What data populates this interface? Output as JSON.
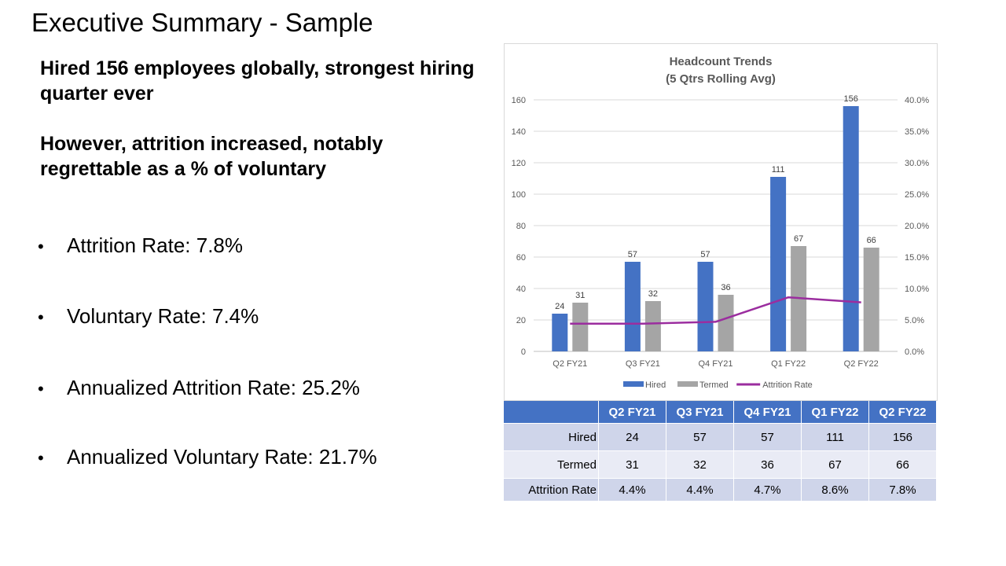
{
  "page": {
    "title": "Executive Summary - Sample",
    "headline1": "Hired 156 employees globally, strongest hiring quarter ever",
    "headline2": "However, attrition increased, notably regrettable as a % of voluntary"
  },
  "bullets": [
    "Attrition Rate: 7.8%",
    "Voluntary Rate: 7.4%",
    "Annualized Attrition Rate: 25.2%",
    "Annualized Voluntary Rate: 21.7%"
  ],
  "bullet_symbol": "•",
  "chart_data": {
    "type": "bar",
    "title": "Headcount Trends",
    "subtitle": "(5 Qtrs Rolling Avg)",
    "categories": [
      "Q2 FY21",
      "Q3 FY21",
      "Q4 FY21",
      "Q1 FY22",
      "Q2 FY22"
    ],
    "series": [
      {
        "name": "Hired",
        "type": "bar",
        "axis": "left",
        "color": "#4472c4",
        "values": [
          24,
          57,
          57,
          111,
          156
        ]
      },
      {
        "name": "Termed",
        "type": "bar",
        "axis": "left",
        "color": "#a5a5a5",
        "values": [
          31,
          32,
          36,
          67,
          66
        ]
      },
      {
        "name": "Attrition Rate",
        "type": "line",
        "axis": "right",
        "color": "#9b2d9f",
        "values": [
          4.4,
          4.4,
          4.7,
          8.6,
          7.8
        ]
      }
    ],
    "y_left": {
      "min": 0,
      "max": 160,
      "step": 20,
      "ticks": [
        "0",
        "20",
        "40",
        "60",
        "80",
        "100",
        "120",
        "140",
        "160"
      ]
    },
    "y_right": {
      "min": 0,
      "max": 40,
      "step": 5,
      "ticks": [
        "0.0%",
        "5.0%",
        "10.0%",
        "15.0%",
        "20.0%",
        "25.0%",
        "30.0%",
        "35.0%",
        "40.0%"
      ]
    },
    "grid": true,
    "legend": "bottom"
  },
  "table": {
    "header_blank": "",
    "columns": [
      "Q2 FY21",
      "Q3 FY21",
      "Q4 FY21",
      "Q1 FY22",
      "Q2 FY22"
    ],
    "rows": [
      {
        "label": "Hired",
        "values": [
          "24",
          "57",
          "57",
          "111",
          "156"
        ]
      },
      {
        "label": "Termed",
        "values": [
          "31",
          "32",
          "36",
          "67",
          "66"
        ]
      },
      {
        "label": "Attrition Rate",
        "values": [
          "4.4%",
          "4.4%",
          "4.7%",
          "8.6%",
          "7.8%"
        ]
      }
    ]
  }
}
